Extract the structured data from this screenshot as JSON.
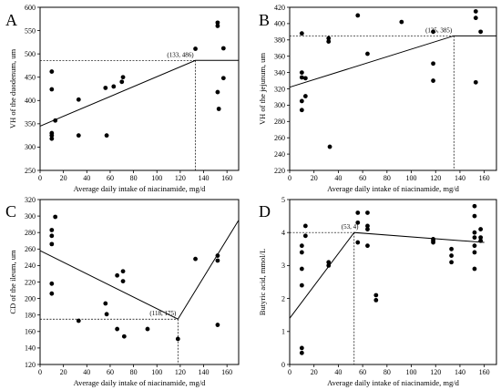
{
  "chart_data": [
    {
      "type": "scatter",
      "panel_label": "A",
      "xlabel": "Average daily intake of niacinamide, mg/d",
      "ylabel": "VH of the duodenum, um",
      "xlim": [
        0,
        170
      ],
      "ylim": [
        250,
        600
      ],
      "xticks": [
        0,
        20,
        40,
        60,
        80,
        100,
        120,
        140,
        160
      ],
      "yticks": [
        250,
        300,
        350,
        400,
        450,
        500,
        550,
        600
      ],
      "points": [
        [
          10,
          462
        ],
        [
          10,
          424
        ],
        [
          10,
          330
        ],
        [
          10,
          325
        ],
        [
          10,
          318
        ],
        [
          13,
          357
        ],
        [
          33,
          402
        ],
        [
          33,
          325
        ],
        [
          56,
          427
        ],
        [
          57,
          325
        ],
        [
          63,
          430
        ],
        [
          70,
          440
        ],
        [
          71,
          450
        ],
        [
          133,
          511
        ],
        [
          152,
          567
        ],
        [
          152,
          560
        ],
        [
          152,
          418
        ],
        [
          153,
          382
        ],
        [
          157,
          512
        ],
        [
          157,
          448
        ]
      ],
      "fit_line": [
        [
          0,
          345
        ],
        [
          133,
          486
        ],
        [
          170,
          486
        ]
      ],
      "breakpoint": [
        133,
        486
      ],
      "annotation": "(133, 486)"
    },
    {
      "type": "scatter",
      "panel_label": "B",
      "xlabel": "Average daily intake of niacinamide, mg/d",
      "ylabel": "VH of the jejunum, um",
      "xlim": [
        0,
        170
      ],
      "ylim": [
        220,
        420
      ],
      "xticks": [
        0,
        20,
        40,
        60,
        80,
        100,
        120,
        140,
        160
      ],
      "yticks": [
        220,
        240,
        260,
        280,
        300,
        320,
        340,
        360,
        380,
        400,
        420
      ],
      "points": [
        [
          10,
          388
        ],
        [
          10,
          340
        ],
        [
          10,
          334
        ],
        [
          10,
          305
        ],
        [
          10,
          294
        ],
        [
          13,
          333
        ],
        [
          13,
          311
        ],
        [
          32,
          382
        ],
        [
          32,
          378
        ],
        [
          33,
          249
        ],
        [
          56,
          410
        ],
        [
          64,
          363
        ],
        [
          92,
          402
        ],
        [
          118,
          390
        ],
        [
          118,
          351
        ],
        [
          118,
          330
        ],
        [
          153,
          415
        ],
        [
          153,
          407
        ],
        [
          153,
          328
        ],
        [
          157,
          390
        ]
      ],
      "fit_line": [
        [
          0,
          322
        ],
        [
          135,
          385
        ],
        [
          170,
          385
        ]
      ],
      "breakpoint": [
        135,
        385
      ],
      "annotation": "(135, 385)"
    },
    {
      "type": "scatter",
      "panel_label": "C",
      "xlabel": "Average daily intake of niacinamide, mg/d",
      "ylabel": "CD of the ileum, um",
      "xlim": [
        0,
        170
      ],
      "ylim": [
        120,
        320
      ],
      "xticks": [
        0,
        20,
        40,
        60,
        80,
        100,
        120,
        140,
        160
      ],
      "yticks": [
        120,
        140,
        160,
        180,
        200,
        220,
        240,
        260,
        280,
        300,
        320
      ],
      "points": [
        [
          10,
          283
        ],
        [
          10,
          276
        ],
        [
          10,
          266
        ],
        [
          10,
          218
        ],
        [
          10,
          206
        ],
        [
          13,
          299
        ],
        [
          33,
          173
        ],
        [
          56,
          194
        ],
        [
          57,
          181
        ],
        [
          66,
          228
        ],
        [
          66,
          163
        ],
        [
          71,
          233
        ],
        [
          71,
          221
        ],
        [
          72,
          154
        ],
        [
          92,
          163
        ],
        [
          118,
          151
        ],
        [
          133,
          248
        ],
        [
          152,
          252
        ],
        [
          152,
          246
        ],
        [
          152,
          168
        ]
      ],
      "fit_line": [
        [
          0,
          258
        ],
        [
          118,
          175
        ],
        [
          170,
          295
        ]
      ],
      "breakpoint": [
        118,
        175
      ],
      "annotation": "(118, 175)"
    },
    {
      "type": "scatter",
      "panel_label": "D",
      "xlabel": "Average daily intake of niacinamide, mg/d",
      "ylabel": "Butyric acid, mmol/L",
      "xlim": [
        0,
        170
      ],
      "ylim": [
        0,
        5
      ],
      "xticks": [
        0,
        20,
        40,
        60,
        80,
        100,
        120,
        140,
        160
      ],
      "yticks": [
        0,
        1,
        2,
        3,
        4,
        5
      ],
      "points": [
        [
          10,
          3.6
        ],
        [
          10,
          3.4
        ],
        [
          10,
          2.9
        ],
        [
          10,
          2.4
        ],
        [
          10,
          0.5
        ],
        [
          10,
          0.35
        ],
        [
          13,
          4.2
        ],
        [
          13,
          3.9
        ],
        [
          32,
          3.1
        ],
        [
          32,
          3.0
        ],
        [
          56,
          4.6
        ],
        [
          56,
          4.3
        ],
        [
          56,
          3.7
        ],
        [
          64,
          4.6
        ],
        [
          64,
          4.2
        ],
        [
          64,
          4.1
        ],
        [
          64,
          3.6
        ],
        [
          71,
          2.1
        ],
        [
          71,
          1.95
        ],
        [
          118,
          3.8
        ],
        [
          118,
          3.75
        ],
        [
          118,
          3.7
        ],
        [
          133,
          3.5
        ],
        [
          133,
          3.3
        ],
        [
          133,
          3.1
        ],
        [
          152,
          4.8
        ],
        [
          152,
          4.5
        ],
        [
          152,
          4.0
        ],
        [
          152,
          3.85
        ],
        [
          152,
          3.6
        ],
        [
          152,
          3.4
        ],
        [
          152,
          2.9
        ],
        [
          157,
          4.1
        ],
        [
          157,
          3.85
        ],
        [
          157,
          3.75
        ]
      ],
      "fit_line": [
        [
          0,
          1.4
        ],
        [
          53,
          4.0
        ],
        [
          160,
          3.7
        ]
      ],
      "breakpoint": [
        53,
        4
      ],
      "annotation": "(53, 4)"
    }
  ]
}
